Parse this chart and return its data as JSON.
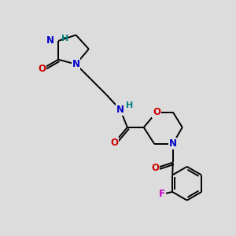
{
  "bg_color": "#dcdcdc",
  "atom_colors": {
    "N": "#0000cc",
    "O": "#cc0000",
    "F": "#cc00cc",
    "H_label": "#008080"
  },
  "bond_color": "#000000",
  "lw": 1.4,
  "fs": 8.5
}
